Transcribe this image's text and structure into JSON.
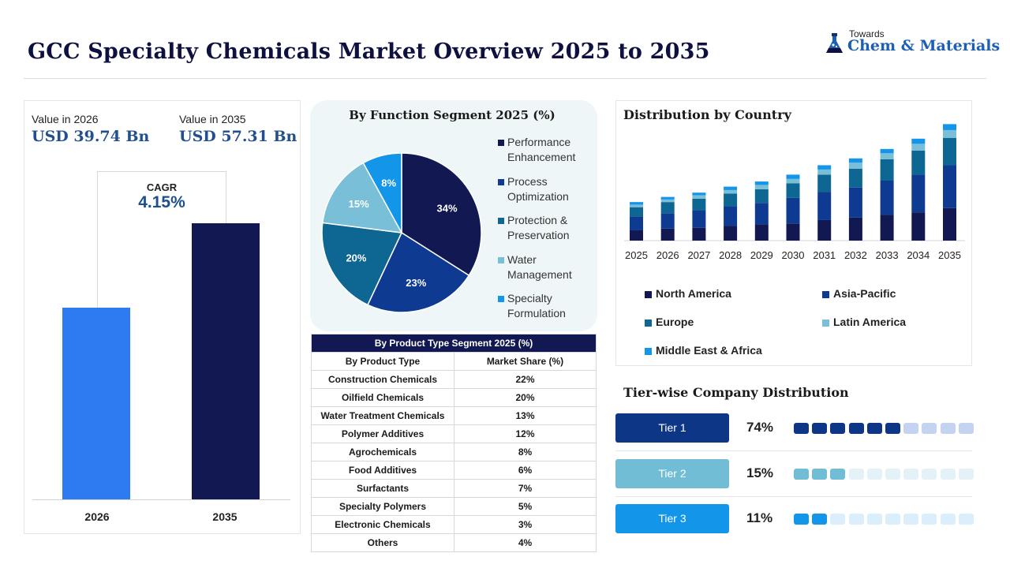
{
  "header": {
    "title": "GCC Specialty Chemicals Market Overview 2025 to 2035",
    "logo_small": "Towards",
    "logo_big": "Chem & Materials"
  },
  "market_value": {
    "label_2026": "Value in 2026",
    "value_2026": "USD 39.74 Bn",
    "label_2035": "Value in 2035",
    "value_2035": "USD 57.31 Bn",
    "cagr_label": "CAGR",
    "cagr_value": "4.15%"
  },
  "function_segment_title": "By Function Segment 2025 (%)",
  "product_table": {
    "caption": "By Product Type Segment 2025 (%)",
    "col1": "By Product Type",
    "col2": "Market Share (%)",
    "rows": [
      {
        "name": "Construction Chemicals",
        "share": "22%"
      },
      {
        "name": "Oilfield Chemicals",
        "share": "20%"
      },
      {
        "name": "Water Treatment Chemicals",
        "share": "13%"
      },
      {
        "name": "Polymer Additives",
        "share": "12%"
      },
      {
        "name": "Agrochemicals",
        "share": "8%"
      },
      {
        "name": "Food Additives",
        "share": "6%"
      },
      {
        "name": "Surfactants",
        "share": "7%"
      },
      {
        "name": "Specialty Polymers",
        "share": "5%"
      },
      {
        "name": "Electronic Chemicals",
        "share": "3%"
      },
      {
        "name": "Others",
        "share": "4%"
      }
    ]
  },
  "distribution_title": "Distribution by Country",
  "tiers": {
    "title": "Tier-wise Company Distribution",
    "items": [
      {
        "label": "Tier 1",
        "pct": "74%",
        "filled": 6,
        "total": 10,
        "btn_color": "#0e3687",
        "btn_text": "#ffffff",
        "dot_on": "#0e3687",
        "dot_off": "#c3d3f0"
      },
      {
        "label": "Tier 2",
        "pct": "15%",
        "filled": 3,
        "total": 10,
        "btn_color": "#71bdd6",
        "btn_text": "#ffffff",
        "dot_on": "#71bdd6",
        "dot_off": "#e4f2f7"
      },
      {
        "label": "Tier 3",
        "pct": "11%",
        "filled": 2,
        "total": 10,
        "btn_color": "#1396ea",
        "btn_text": "#ffffff",
        "dot_on": "#1396ea",
        "dot_off": "#dbeefb"
      }
    ]
  },
  "chart_data": [
    {
      "type": "bar",
      "categories": [
        "2026",
        "2035"
      ],
      "values": [
        39.74,
        57.31
      ],
      "colors": [
        "#2e7af0",
        "#121852"
      ],
      "ylim": [
        0,
        70
      ]
    },
    {
      "type": "pie",
      "title": "By Function Segment 2025 (%)",
      "labels": [
        "Performance Enhancement",
        "Process Optimization",
        "Protection & Preservation",
        "Water Management",
        "Specialty Formulation"
      ],
      "values": [
        34,
        23,
        20,
        15,
        8
      ],
      "colors": [
        "#121852",
        "#0e3a92",
        "#0e6692",
        "#79bfd8",
        "#1396ea"
      ]
    },
    {
      "type": "bar",
      "stacked": true,
      "title": "Distribution by Country",
      "categories": [
        "2025",
        "2026",
        "2027",
        "2028",
        "2029",
        "2030",
        "2031",
        "2032",
        "2033",
        "2034",
        "2035"
      ],
      "series": [
        {
          "name": "North America",
          "color": "#121852",
          "values": [
            12,
            14,
            15,
            17,
            19,
            20,
            24,
            27,
            30,
            33,
            38
          ]
        },
        {
          "name": "Asia-Pacific",
          "color": "#0e3a92",
          "values": [
            16,
            18,
            20,
            23,
            25,
            30,
            33,
            35,
            40,
            44,
            50
          ]
        },
        {
          "name": "Europe",
          "color": "#0e6692",
          "values": [
            11,
            13,
            14,
            15,
            16,
            17,
            20,
            22,
            25,
            28,
            32
          ]
        },
        {
          "name": "Latin America",
          "color": "#79bfd8",
          "values": [
            3,
            3,
            4,
            4,
            5,
            5,
            6,
            7,
            7,
            8,
            9
          ]
        },
        {
          "name": "Middle East & Africa",
          "color": "#1396ea",
          "values": [
            3,
            3,
            3,
            4,
            4,
            5,
            5,
            5,
            5,
            6,
            7
          ]
        }
      ],
      "legend_position": "bottom",
      "ylim": [
        0,
        140
      ]
    }
  ]
}
